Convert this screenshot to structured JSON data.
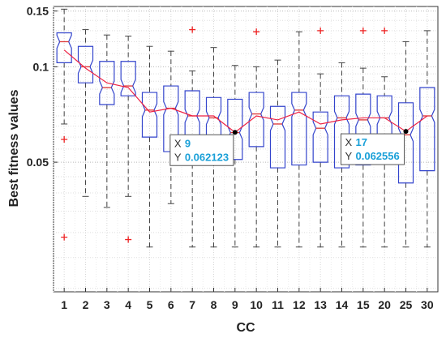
{
  "chart_data": {
    "type": "boxplot",
    "xlabel": "CC",
    "ylabel": "Best fitness values",
    "yscale": "log",
    "ylim": [
      0.0195,
      0.155
    ],
    "yticks": [
      0.05,
      0.1,
      0.15
    ],
    "ytick_labels": [
      "0.05",
      "0.1",
      "0.15"
    ],
    "grid": true,
    "notched": true,
    "colors": {
      "box": "#3344cc",
      "median": "#dd3333",
      "mean_line": "#ee2244",
      "outlier": "#ee2222",
      "whisker": "#444444"
    },
    "categories": [
      "1",
      "2",
      "3",
      "4",
      "5",
      "6",
      "7",
      "8",
      "9",
      "10",
      "11",
      "12",
      "13",
      "14",
      "15",
      "20",
      "25",
      "30"
    ],
    "boxes": [
      {
        "label": "1",
        "q1": 0.103,
        "median": 0.12,
        "q3": 0.128,
        "whisker_low": 0.066,
        "whisker_high": 0.152,
        "outliers": [
          0.059,
          0.029
        ]
      },
      {
        "label": "2",
        "q1": 0.089,
        "median": 0.1,
        "q3": 0.116,
        "whisker_low": 0.039,
        "whisker_high": 0.131,
        "outliers": []
      },
      {
        "label": "3",
        "q1": 0.076,
        "median": 0.086,
        "q3": 0.104,
        "whisker_low": 0.036,
        "whisker_high": 0.126,
        "outliers": []
      },
      {
        "label": "4",
        "q1": 0.081,
        "median": 0.087,
        "q3": 0.104,
        "whisker_low": 0.039,
        "whisker_high": 0.125,
        "outliers": [
          0.0285
        ]
      },
      {
        "label": "5",
        "q1": 0.06,
        "median": 0.073,
        "q3": 0.083,
        "whisker_low": 0.027,
        "whisker_high": 0.116,
        "outliers": []
      },
      {
        "label": "6",
        "q1": 0.054,
        "median": 0.074,
        "q3": 0.087,
        "whisker_low": 0.037,
        "whisker_high": 0.112,
        "outliers": []
      },
      {
        "label": "7",
        "q1": 0.059,
        "median": 0.07,
        "q3": 0.084,
        "whisker_low": 0.027,
        "whisker_high": 0.097,
        "outliers": [
          0.131
        ]
      },
      {
        "label": "8",
        "q1": 0.06,
        "median": 0.069,
        "q3": 0.08,
        "whisker_low": 0.027,
        "whisker_high": 0.115,
        "outliers": []
      },
      {
        "label": "9",
        "q1": 0.051,
        "median": 0.062,
        "q3": 0.079,
        "whisker_low": 0.027,
        "whisker_high": 0.101,
        "outliers": []
      },
      {
        "label": "10",
        "q1": 0.056,
        "median": 0.071,
        "q3": 0.083,
        "whisker_low": 0.027,
        "whisker_high": 0.1,
        "outliers": [
          0.129
        ]
      },
      {
        "label": "11",
        "q1": 0.048,
        "median": 0.066,
        "q3": 0.075,
        "whisker_low": 0.027,
        "whisker_high": 0.105,
        "outliers": []
      },
      {
        "label": "12",
        "q1": 0.049,
        "median": 0.073,
        "q3": 0.083,
        "whisker_low": 0.027,
        "whisker_high": 0.129,
        "outliers": []
      },
      {
        "label": "13",
        "q1": 0.05,
        "median": 0.064,
        "q3": 0.072,
        "whisker_low": 0.027,
        "whisker_high": 0.095,
        "outliers": [
          0.13
        ]
      },
      {
        "label": "14",
        "q1": 0.048,
        "median": 0.069,
        "q3": 0.081,
        "whisker_low": 0.027,
        "whisker_high": 0.103,
        "outliers": []
      },
      {
        "label": "15",
        "q1": 0.049,
        "median": 0.068,
        "q3": 0.082,
        "whisker_low": 0.027,
        "whisker_high": 0.099,
        "outliers": [
          0.13
        ]
      },
      {
        "label": "20",
        "q1": 0.052,
        "median": 0.069,
        "q3": 0.081,
        "whisker_low": 0.027,
        "whisker_high": 0.093,
        "outliers": [
          0.13
        ]
      },
      {
        "label": "25",
        "q1": 0.043,
        "median": 0.061,
        "q3": 0.077,
        "whisker_low": 0.027,
        "whisker_high": 0.12,
        "outliers": []
      },
      {
        "label": "30",
        "q1": 0.047,
        "median": 0.07,
        "q3": 0.086,
        "whisker_low": 0.027,
        "whisker_high": 0.13,
        "outliers": []
      }
    ],
    "trend_line": [
      0.113,
      0.099,
      0.089,
      0.086,
      0.072,
      0.074,
      0.07,
      0.07,
      0.062123,
      0.07,
      0.068,
      0.072,
      0.066,
      0.068,
      0.069,
      0.069,
      0.062556,
      0.07
    ],
    "datatips": [
      {
        "category": "9",
        "x_key": "X",
        "x_value": "9",
        "y_key": "Y",
        "y_value": "0.062123"
      },
      {
        "category": "25",
        "x_key": "X",
        "x_value": "17",
        "y_key": "Y",
        "y_value": "0.062556"
      }
    ]
  }
}
